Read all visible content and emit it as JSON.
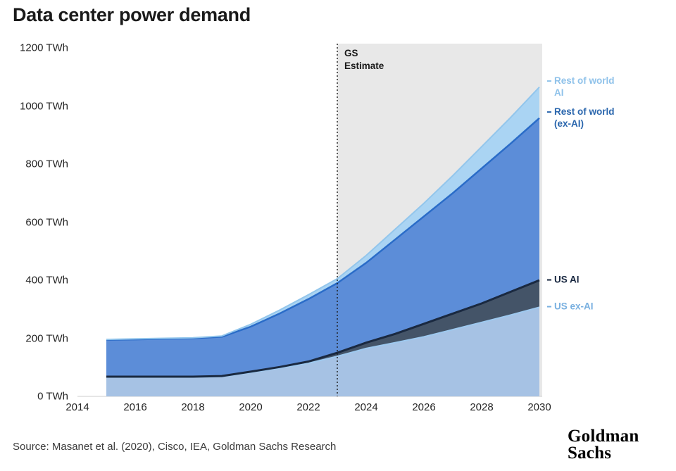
{
  "chart_data": {
    "type": "area",
    "stacked": true,
    "title": "Data center power demand",
    "x_domain": [
      2014,
      2030
    ],
    "x": [
      2015,
      2016,
      2017,
      2018,
      2019,
      2020,
      2021,
      2022,
      2023,
      2024,
      2025,
      2026,
      2027,
      2028,
      2029,
      2030
    ],
    "ylim": [
      0,
      1200
    ],
    "y_unit": "TWh",
    "y_ticks": [
      "0 TWh",
      "200 TWh",
      "400 TWh",
      "600 TWh",
      "800 TWh",
      "1000 TWh",
      "1200 TWh"
    ],
    "x_ticks": [
      "2014",
      "2016",
      "2018",
      "2020",
      "2022",
      "2024",
      "2026",
      "2028",
      "2030"
    ],
    "estimate_start_year": 2023,
    "estimate_label": "GS\nEstimate",
    "estimate_bg": "#e8e8e8",
    "axis_color": "#cccccc",
    "divider_color": "#1a1a1a",
    "legend_position": "right",
    "grid": false,
    "series": [
      {
        "name": "US ex-AI",
        "values": [
          66,
          66,
          66,
          66,
          68,
          82,
          97,
          114,
          138,
          165,
          185,
          205,
          230,
          255,
          280,
          307
        ],
        "fill": "#a6c2e4",
        "line": "#9ec9ef",
        "line_width": 2,
        "label_color": "#79b0e0"
      },
      {
        "name": "US AI",
        "values": [
          2,
          2,
          2,
          2,
          2,
          3,
          4,
          6,
          12,
          20,
          30,
          45,
          55,
          65,
          80,
          93
        ],
        "fill": "#445468",
        "line": "#1a2940",
        "line_width": 3,
        "label_color": "#17263f"
      },
      {
        "name": "Rest of world (ex-AI)",
        "values": [
          127,
          128,
          130,
          132,
          135,
          155,
          184,
          215,
          240,
          275,
          325,
          370,
          415,
          465,
          510,
          558
        ],
        "fill": "#5c8dd8",
        "line": "#2a6cc8",
        "line_width": 2.5,
        "label_color": "#2a66ad"
      },
      {
        "name": "Rest of world AI",
        "values": [
          1,
          2,
          2,
          2,
          3,
          8,
          12,
          15,
          15,
          25,
          35,
          45,
          60,
          75,
          90,
          107
        ],
        "fill": "#aad4f3",
        "line": "#93c6ec",
        "line_width": 2,
        "label_color": "#8fc2ea"
      }
    ]
  },
  "footer": {
    "source": "Source: Masanet et al. (2020), Cisco, IEA, Goldman Sachs Research",
    "logo_line1": "Goldman",
    "logo_line2": "Sachs"
  }
}
